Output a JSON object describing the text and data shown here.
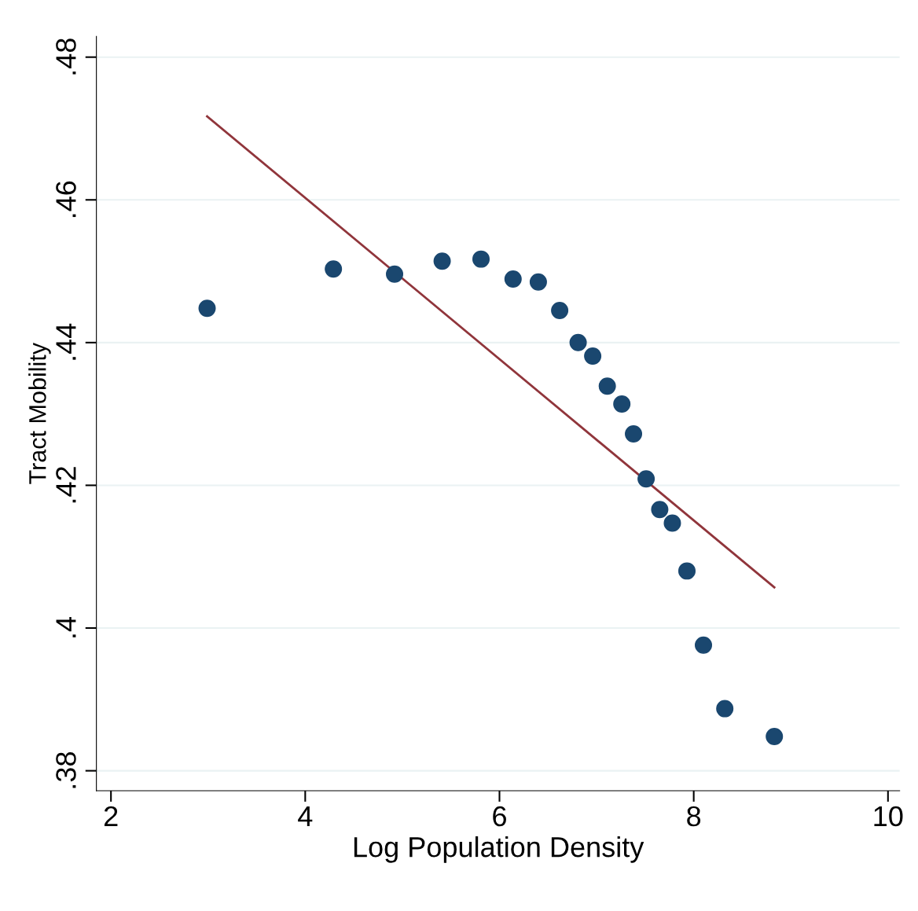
{
  "chart_data": {
    "type": "scatter",
    "xlabel": "Log Population Density",
    "ylabel": "Tract Mobility",
    "series": [
      {
        "marker": "circle",
        "color": "#1a476f",
        "x": [
          2.99,
          4.29,
          4.92,
          5.41,
          5.81,
          6.14,
          6.4,
          6.62,
          6.81,
          6.96,
          7.11,
          7.26,
          7.38,
          7.51,
          7.65,
          7.78,
          7.93,
          8.1,
          8.32,
          8.83
        ],
        "values": [
          0.4448,
          0.4503,
          0.4496,
          0.4514,
          0.4517,
          0.4489,
          0.4485,
          0.4445,
          0.44,
          0.4381,
          0.4339,
          0.4314,
          0.4272,
          0.4209,
          0.4166,
          0.4147,
          0.408,
          0.3976,
          0.3887,
          0.3848
        ]
      },
      {
        "type": "line",
        "marker": "none",
        "color": "#90353b",
        "x": [
          2.99,
          8.83
        ],
        "values": [
          0.4717,
          0.4057
        ]
      }
    ],
    "xlim": [
      1.85,
      10.12
    ],
    "ylim": [
      0.3772,
      0.4829
    ],
    "xticks": [
      2,
      4,
      6,
      8,
      10
    ],
    "yticks": [
      {
        "value": 0.38,
        "label": ".38"
      },
      {
        "value": 0.4,
        "label": ".4"
      },
      {
        "value": 0.42,
        "label": ".42"
      },
      {
        "value": 0.44,
        "label": ".44"
      },
      {
        "value": 0.46,
        "label": ".46"
      },
      {
        "value": 0.48,
        "label": ".48"
      }
    ],
    "grid": "y",
    "line_style": "solid",
    "legend": false
  }
}
